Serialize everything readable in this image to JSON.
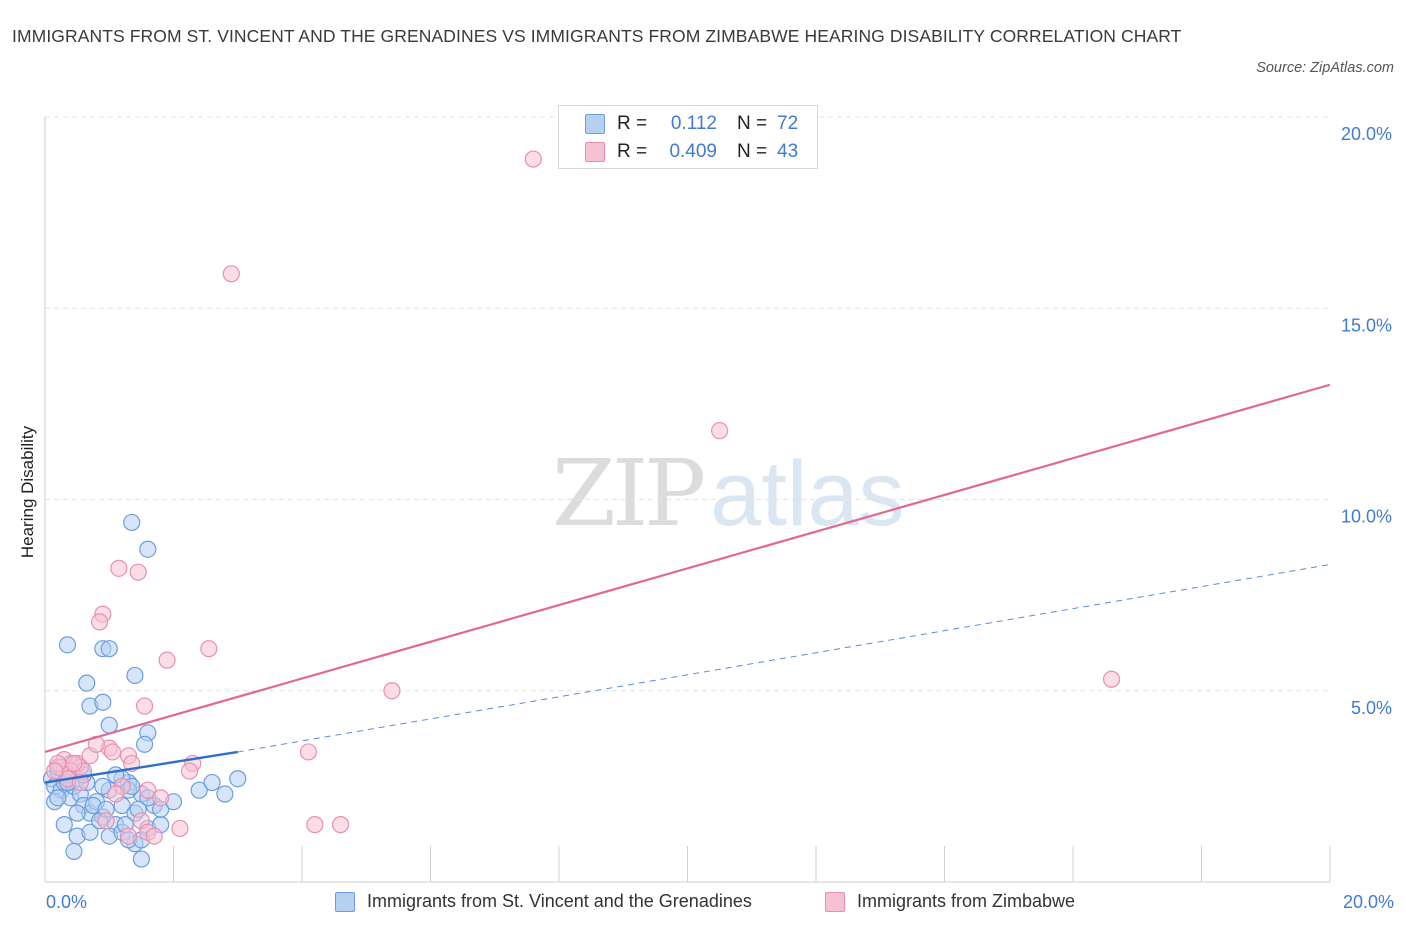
{
  "title": "IMMIGRANTS FROM ST. VINCENT AND THE GRENADINES VS IMMIGRANTS FROM ZIMBABWE HEARING DISABILITY CORRELATION CHART",
  "source": "Source: ZipAtlas.com",
  "watermark": {
    "part1": "ZIP",
    "part2": "atlas"
  },
  "colors": {
    "blue_fill": "#b7d0f2",
    "blue_stroke": "#6b9ee0",
    "blue_line": "#2f6fcc",
    "pink_fill": "#f7c1d3",
    "pink_stroke": "#ea8fae",
    "pink_line": "#e06893",
    "axis_label": "#3f7bd1",
    "grid": "#e3e3e3"
  },
  "legend_top": {
    "r_label": "R =",
    "n_label": "N =",
    "rows": [
      {
        "series": "blue",
        "r": "0.112",
        "n": "72"
      },
      {
        "series": "pink",
        "r": "0.409",
        "n": "43"
      }
    ]
  },
  "chart_data": {
    "type": "scatter",
    "ylabel": "Hearing Disability",
    "xlim": [
      0,
      20
    ],
    "ylim": [
      0,
      20
    ],
    "x_tick_labels": [
      "0.0%",
      "20.0%"
    ],
    "y_ticks": [
      5,
      10,
      15,
      20
    ],
    "y_tick_labels": [
      "5.0%",
      "10.0%",
      "15.0%",
      "20.0%"
    ],
    "series": [
      {
        "name": "Immigrants from St. Vincent and the Grenadines",
        "color": "blue",
        "R": 0.112,
        "N": 72,
        "trend_solid": [
          [
            0,
            2.6
          ],
          [
            3.0,
            3.4
          ]
        ],
        "trend_dashed": [
          [
            3.0,
            3.4
          ],
          [
            20,
            8.3
          ]
        ],
        "points": [
          [
            0.1,
            2.7
          ],
          [
            0.15,
            2.5
          ],
          [
            0.2,
            2.9
          ],
          [
            0.25,
            2.4
          ],
          [
            0.3,
            2.6
          ],
          [
            0.35,
            2.8
          ],
          [
            0.4,
            2.2
          ],
          [
            0.45,
            2.5
          ],
          [
            0.5,
            2.7
          ],
          [
            0.55,
            2.3
          ],
          [
            0.6,
            2.0
          ],
          [
            0.65,
            2.6
          ],
          [
            0.7,
            1.8
          ],
          [
            0.8,
            2.1
          ],
          [
            0.9,
            1.7
          ],
          [
            1.0,
            2.4
          ],
          [
            1.1,
            1.5
          ],
          [
            1.2,
            2.0
          ],
          [
            1.3,
            2.6
          ],
          [
            1.4,
            1.8
          ],
          [
            1.5,
            2.3
          ],
          [
            1.6,
            1.4
          ],
          [
            1.7,
            2.0
          ],
          [
            1.8,
            1.5
          ],
          [
            0.15,
            2.1
          ],
          [
            0.3,
            1.5
          ],
          [
            0.5,
            1.2
          ],
          [
            0.7,
            1.3
          ],
          [
            0.85,
            1.6
          ],
          [
            1.0,
            1.2
          ],
          [
            1.2,
            1.3
          ],
          [
            1.4,
            1.0
          ],
          [
            1.3,
            1.1
          ],
          [
            1.5,
            1.1
          ],
          [
            0.2,
            3.0
          ],
          [
            0.4,
            3.1
          ],
          [
            0.3,
            2.9
          ],
          [
            0.6,
            2.8
          ],
          [
            0.9,
            2.5
          ],
          [
            1.2,
            2.7
          ],
          [
            1.6,
            2.2
          ],
          [
            1.8,
            1.9
          ],
          [
            2.0,
            2.1
          ],
          [
            2.4,
            2.4
          ],
          [
            2.6,
            2.6
          ],
          [
            2.8,
            2.3
          ],
          [
            3.0,
            2.7
          ],
          [
            1.1,
            2.8
          ],
          [
            0.35,
            6.2
          ],
          [
            0.7,
            4.6
          ],
          [
            0.9,
            6.1
          ],
          [
            1.0,
            6.1
          ],
          [
            1.4,
            5.4
          ],
          [
            0.65,
            5.2
          ],
          [
            0.9,
            4.7
          ],
          [
            1.0,
            4.1
          ],
          [
            1.6,
            3.9
          ],
          [
            1.55,
            3.6
          ],
          [
            1.3,
            2.4
          ],
          [
            1.35,
            2.5
          ],
          [
            1.35,
            9.4
          ],
          [
            1.6,
            8.7
          ],
          [
            0.45,
            0.8
          ],
          [
            1.5,
            0.6
          ],
          [
            0.2,
            2.2
          ],
          [
            0.5,
            1.8
          ],
          [
            0.75,
            2.0
          ],
          [
            1.25,
            1.5
          ],
          [
            0.55,
            3.0
          ],
          [
            0.35,
            2.6
          ],
          [
            0.95,
            1.9
          ],
          [
            1.45,
            1.9
          ]
        ]
      },
      {
        "name": "Immigrants from Zimbabwe",
        "color": "pink",
        "R": 0.409,
        "N": 43,
        "trend_solid": [
          [
            0,
            3.4
          ],
          [
            20,
            13.0
          ]
        ],
        "points": [
          [
            7.6,
            18.9
          ],
          [
            2.9,
            15.9
          ],
          [
            10.5,
            11.8
          ],
          [
            16.6,
            5.3
          ],
          [
            5.4,
            5.0
          ],
          [
            1.15,
            8.2
          ],
          [
            1.45,
            8.1
          ],
          [
            0.9,
            7.0
          ],
          [
            0.85,
            6.8
          ],
          [
            2.55,
            6.1
          ],
          [
            1.9,
            5.8
          ],
          [
            1.55,
            4.6
          ],
          [
            4.1,
            3.4
          ],
          [
            4.2,
            1.5
          ],
          [
            4.6,
            1.5
          ],
          [
            1.0,
            3.5
          ],
          [
            1.3,
            3.3
          ],
          [
            0.3,
            3.2
          ],
          [
            0.5,
            3.1
          ],
          [
            0.7,
            3.3
          ],
          [
            0.25,
            3.0
          ],
          [
            0.4,
            2.9
          ],
          [
            0.2,
            3.1
          ],
          [
            0.6,
            2.9
          ],
          [
            0.8,
            3.6
          ],
          [
            1.2,
            2.5
          ],
          [
            1.35,
            3.1
          ],
          [
            1.6,
            2.4
          ],
          [
            1.8,
            2.2
          ],
          [
            2.3,
            3.1
          ],
          [
            2.25,
            2.9
          ],
          [
            1.1,
            2.3
          ],
          [
            1.5,
            1.6
          ],
          [
            1.6,
            1.3
          ],
          [
            1.7,
            1.2
          ],
          [
            2.1,
            1.4
          ],
          [
            0.35,
            2.7
          ],
          [
            0.55,
            2.6
          ],
          [
            0.15,
            2.9
          ],
          [
            0.45,
            3.1
          ],
          [
            0.95,
            1.6
          ],
          [
            1.3,
            1.2
          ],
          [
            1.05,
            3.4
          ]
        ]
      }
    ]
  }
}
